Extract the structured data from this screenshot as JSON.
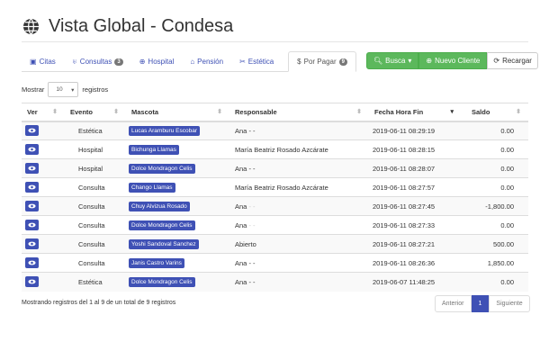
{
  "header": {
    "title": "Vista Global - Condesa",
    "icon": "globe-icon"
  },
  "tabs": [
    {
      "label": "Citas",
      "icon": "calendar-check-icon"
    },
    {
      "label": "Consultas",
      "icon": "stethoscope-icon",
      "badge": "3"
    },
    {
      "label": "Hospital",
      "icon": "hospital-icon"
    },
    {
      "label": "Pensión",
      "icon": "home-icon"
    },
    {
      "label": "Estética",
      "icon": "scissors-icon"
    },
    {
      "label": "Por Pagar",
      "icon": "dollar-icon",
      "badge": "9",
      "active": true
    }
  ],
  "toolbar": {
    "busca": "Busca",
    "nuevo": "Nuevo Cliente",
    "recargar": "Recargar",
    "accent": "#5cb85c"
  },
  "length": {
    "prefix": "Mostrar",
    "value": "10",
    "suffix": "registros"
  },
  "table": {
    "columns": [
      "Ver",
      "Evento",
      "Mascota",
      "Responsable",
      "Fecha Hora Fin",
      "Saldo"
    ],
    "rows": [
      {
        "evento": "Estética",
        "mascota": "Lucas Aramburu Escobar",
        "responsable": "Ana",
        "resp_suffix": "- -",
        "fecha": "2019-06-11 08:29:19",
        "saldo": "0.00"
      },
      {
        "evento": "Hospital",
        "mascota": "Bichunga Llamas",
        "responsable": "María Beatriz Rosado Azcárate",
        "resp_suffix": "",
        "fecha": "2019-06-11 08:28:15",
        "saldo": "0.00"
      },
      {
        "evento": "Hospital",
        "mascota": "Dolce Mondragon Celis",
        "responsable": "Ana",
        "resp_suffix": "- -",
        "fecha": "2019-06-11 08:28:07",
        "saldo": "0.00"
      },
      {
        "evento": "Consulta",
        "mascota": "Chango Llamas",
        "responsable": "María Beatriz Rosado Azcárate",
        "resp_suffix": "",
        "fecha": "2019-06-11 08:27:57",
        "saldo": "0.00"
      },
      {
        "evento": "Consulta",
        "mascota": "Chuy Alvizua Rosado",
        "responsable": "Ana",
        "resp_suffix": "- -",
        "fecha": "2019-06-11 08:27:45",
        "saldo": "-1,800.00"
      },
      {
        "evento": "Consulta",
        "mascota": "Dolce Mondragon Celis",
        "responsable": "Ana",
        "resp_suffix": "- -",
        "fecha": "2019-06-11 08:27:33",
        "saldo": "0.00"
      },
      {
        "evento": "Consulta",
        "mascota": "Yoshi Sandoval Sanchez",
        "responsable": "Abierto",
        "resp_suffix": "",
        "fecha": "2019-06-11 08:27:21",
        "saldo": "500.00"
      },
      {
        "evento": "Consulta",
        "mascota": "Janis Castro Varins",
        "responsable": "Ana",
        "resp_suffix": "- -",
        "fecha": "2019-06-11 08:26:36",
        "saldo": "1,850.00"
      },
      {
        "evento": "Estética",
        "mascota": "Dolce Mondragon Celis",
        "responsable": "Ana",
        "resp_suffix": "- -",
        "fecha": "2019-06-07 11:48:25",
        "saldo": "0.00"
      }
    ]
  },
  "footer": {
    "info": "Mostrando registros del 1 al 9 de un total de 9 registros",
    "prev": "Anterior",
    "page": "1",
    "next": "Siguiente"
  }
}
